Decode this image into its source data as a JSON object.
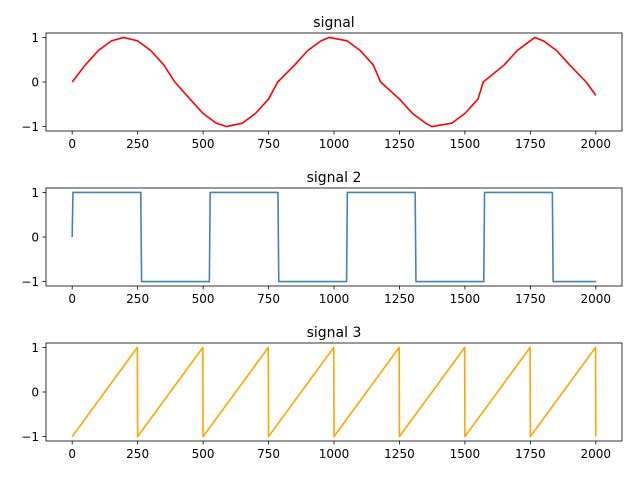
{
  "chart_data": [
    {
      "type": "line",
      "title": "signal",
      "xlabel": "",
      "ylabel": "",
      "xlim": [
        -100,
        2100
      ],
      "ylim": [
        -1.1,
        1.1
      ],
      "xticks": [
        "0",
        "250",
        "500",
        "750",
        "1000",
        "1250",
        "1500",
        "1750",
        "2000"
      ],
      "yticks": [
        "1",
        "0",
        "−1"
      ],
      "grid": false,
      "color": "#ff0000",
      "x": [
        0,
        50,
        100,
        150,
        196,
        250,
        300,
        350,
        392,
        450,
        500,
        550,
        589,
        650,
        700,
        750,
        785,
        850,
        900,
        950,
        981,
        1050,
        1100,
        1150,
        1178,
        1250,
        1300,
        1350,
        1374,
        1450,
        1500,
        1550,
        1570,
        1650,
        1700,
        1767,
        1800,
        1850,
        1900,
        1963,
        2000
      ],
      "series": [
        {
          "values": [
            0,
            0.383,
            0.707,
            0.924,
            1,
            0.924,
            0.707,
            0.383,
            0,
            -0.383,
            -0.707,
            -0.924,
            -1,
            -0.924,
            -0.707,
            -0.383,
            0,
            0.383,
            0.707,
            0.924,
            1,
            0.924,
            0.707,
            0.383,
            0,
            -0.383,
            -0.707,
            -0.924,
            -1,
            -0.924,
            -0.707,
            -0.383,
            0,
            0.383,
            0.707,
            1,
            0.924,
            0.707,
            0.383,
            0,
            -0.3
          ]
        }
      ]
    },
    {
      "type": "line",
      "title": "signal 2",
      "xlabel": "",
      "ylabel": "",
      "xlim": [
        -100,
        2100
      ],
      "ylim": [
        -1.1,
        1.1
      ],
      "xticks": [
        "0",
        "250",
        "500",
        "750",
        "1000",
        "1250",
        "1500",
        "1750",
        "2000"
      ],
      "yticks": [
        "1",
        "0",
        "−1"
      ],
      "grid": false,
      "color": "#4682b4",
      "x": [
        0,
        3,
        262,
        265,
        524,
        527,
        786,
        789,
        1048,
        1051,
        1310,
        1313,
        1572,
        1575,
        1834,
        1837,
        2000
      ],
      "series": [
        {
          "values": [
            0,
            1,
            1,
            -1,
            -1,
            1,
            1,
            -1,
            -1,
            1,
            1,
            -1,
            -1,
            1,
            1,
            -1,
            -1
          ]
        }
      ]
    },
    {
      "type": "line",
      "title": "signal 3",
      "xlabel": "",
      "ylabel": "",
      "xlim": [
        -100,
        2100
      ],
      "ylim": [
        -1.1,
        1.1
      ],
      "xticks": [
        "0",
        "250",
        "500",
        "750",
        "1000",
        "1250",
        "1500",
        "1750",
        "2000"
      ],
      "yticks": [
        "1",
        "0",
        "−1"
      ],
      "grid": false,
      "color": "#ffa500",
      "x": [
        0,
        249,
        250,
        499,
        500,
        749,
        750,
        999,
        1000,
        1249,
        1250,
        1499,
        1500,
        1749,
        1750,
        1999,
        2000
      ],
      "series": [
        {
          "values": [
            -1,
            1,
            -1,
            1,
            -1,
            1,
            -1,
            1,
            -1,
            1,
            -1,
            1,
            -1,
            1,
            -1,
            1,
            -1
          ]
        }
      ]
    }
  ]
}
